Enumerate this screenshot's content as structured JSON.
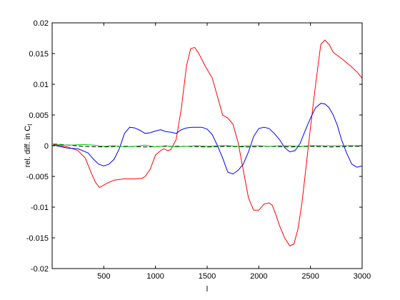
{
  "chart_data": {
    "type": "line",
    "title": "",
    "xlabel": "l",
    "ylabel": "rel. diff. in C",
    "ylabel_subscript": "l",
    "xlim": [
      0,
      3000
    ],
    "ylim": [
      -0.02,
      0.02
    ],
    "x_ticks": [
      500,
      1000,
      1500,
      2000,
      2500,
      3000
    ],
    "x_tick_labels": [
      "500",
      "1000",
      "1500",
      "2000",
      "2500",
      "3000"
    ],
    "y_ticks": [
      -0.02,
      -0.015,
      -0.01,
      -0.005,
      0,
      0.005,
      0.01,
      0.015,
      0.02
    ],
    "y_tick_labels": [
      "-0.02",
      "-0.015",
      "-0.01",
      "-0.005",
      "0",
      "0.005",
      "0.01",
      "0.015",
      "0.02"
    ],
    "grid": false,
    "legend": "none",
    "series": [
      {
        "color": "#ff0000",
        "style": "solid",
        "x": [
          10,
          150,
          250,
          320,
          380,
          420,
          460,
          520,
          600,
          700,
          800,
          870,
          900,
          950,
          1000,
          1050,
          1080,
          1120,
          1150,
          1200,
          1250,
          1300,
          1340,
          1380,
          1420,
          1480,
          1550,
          1600,
          1650,
          1700,
          1750,
          1800,
          1850,
          1900,
          1950,
          2000,
          2050,
          2100,
          2130,
          2160,
          2200,
          2250,
          2300,
          2340,
          2380,
          2420,
          2460,
          2500,
          2550,
          2600,
          2640,
          2680,
          2720,
          2760,
          2800,
          2850,
          2900,
          2950,
          3000
        ],
        "values": [
          0.0002,
          -0.0002,
          -0.0008,
          -0.002,
          -0.0045,
          -0.006,
          -0.0068,
          -0.0062,
          -0.0056,
          -0.0054,
          -0.0054,
          -0.0053,
          -0.005,
          -0.0038,
          -0.0015,
          -0.0008,
          -0.0005,
          -0.0008,
          -0.0006,
          0.001,
          0.006,
          0.013,
          0.0158,
          0.016,
          0.015,
          0.013,
          0.011,
          0.008,
          0.005,
          0.0045,
          0.0035,
          0.0005,
          -0.004,
          -0.0085,
          -0.0105,
          -0.0105,
          -0.0095,
          -0.0093,
          -0.0097,
          -0.011,
          -0.013,
          -0.015,
          -0.0163,
          -0.016,
          -0.0135,
          -0.009,
          -0.003,
          0.003,
          0.01,
          0.0165,
          0.0172,
          0.0165,
          0.0152,
          0.0147,
          0.0142,
          0.0135,
          0.0128,
          0.012,
          0.011
        ]
      },
      {
        "color": "#0000ff",
        "style": "solid",
        "x": [
          10,
          150,
          250,
          350,
          400,
          450,
          500,
          550,
          600,
          650,
          700,
          750,
          800,
          850,
          900,
          950,
          1000,
          1050,
          1100,
          1150,
          1200,
          1250,
          1300,
          1350,
          1400,
          1450,
          1500,
          1550,
          1600,
          1650,
          1700,
          1750,
          1800,
          1850,
          1900,
          1950,
          2000,
          2050,
          2100,
          2150,
          2200,
          2250,
          2300,
          2350,
          2400,
          2450,
          2500,
          2550,
          2600,
          2640,
          2680,
          2720,
          2760,
          2800,
          2850,
          2900,
          2950,
          3000
        ],
        "values": [
          0.0001,
          -0.0004,
          -0.0005,
          -0.0012,
          -0.0022,
          -0.003,
          -0.0033,
          -0.003,
          -0.0022,
          -0.0005,
          0.002,
          0.003,
          0.0029,
          0.0025,
          0.002,
          0.0021,
          0.0024,
          0.0026,
          0.0023,
          0.0022,
          0.002,
          0.0026,
          0.0029,
          0.003,
          0.003,
          0.003,
          0.0027,
          0.0018,
          0.0,
          -0.002,
          -0.0043,
          -0.0046,
          -0.004,
          -0.003,
          -0.001,
          0.0015,
          0.0028,
          0.003,
          0.0028,
          0.002,
          0.001,
          -0.0003,
          -0.001,
          -0.0008,
          0.0004,
          0.0025,
          0.0045,
          0.0062,
          0.0069,
          0.0068,
          0.0062,
          0.005,
          0.0033,
          0.001,
          -0.0012,
          -0.003,
          -0.0035,
          -0.0033
        ]
      },
      {
        "color": "#000000",
        "style": "dashed",
        "x": [
          10,
          300,
          500,
          700,
          900,
          1100,
          1300,
          1500,
          1700,
          1900,
          2100,
          2300,
          2500,
          2700,
          2900,
          3000
        ],
        "values": [
          0.0003,
          -0.0001,
          -0.0002,
          -0.0001,
          -0.0002,
          -0.0001,
          -0.0001,
          -0.0002,
          -0.0001,
          -0.0002,
          -0.0001,
          -0.0002,
          -0.0001,
          -0.0002,
          -0.0001,
          -0.0001
        ]
      },
      {
        "color": "#00c800",
        "style": "solid",
        "x": [
          10,
          100,
          200,
          300,
          400,
          500,
          600,
          700,
          800,
          900,
          1000,
          1100,
          1200,
          1300,
          1400,
          1500,
          1600,
          1700,
          1800,
          1900,
          2000,
          2100,
          2200,
          2300,
          2400,
          2500,
          2600,
          2700,
          2800,
          2900,
          3000
        ],
        "values": [
          0.0003,
          0.0001,
          0.0001,
          0.0002,
          0.0001,
          -0.0001,
          0.0,
          -0.0002,
          -0.0001,
          0.0001,
          -0.0002,
          0.0,
          -0.0002,
          -0.0001,
          0.0,
          -0.0001,
          0.0,
          0.0,
          -0.0001,
          0.0,
          0.0,
          -0.0001,
          0.0,
          0.0,
          -0.0001,
          0.0,
          0.0,
          0.0,
          0.0,
          0.0,
          0.0
        ]
      }
    ]
  }
}
